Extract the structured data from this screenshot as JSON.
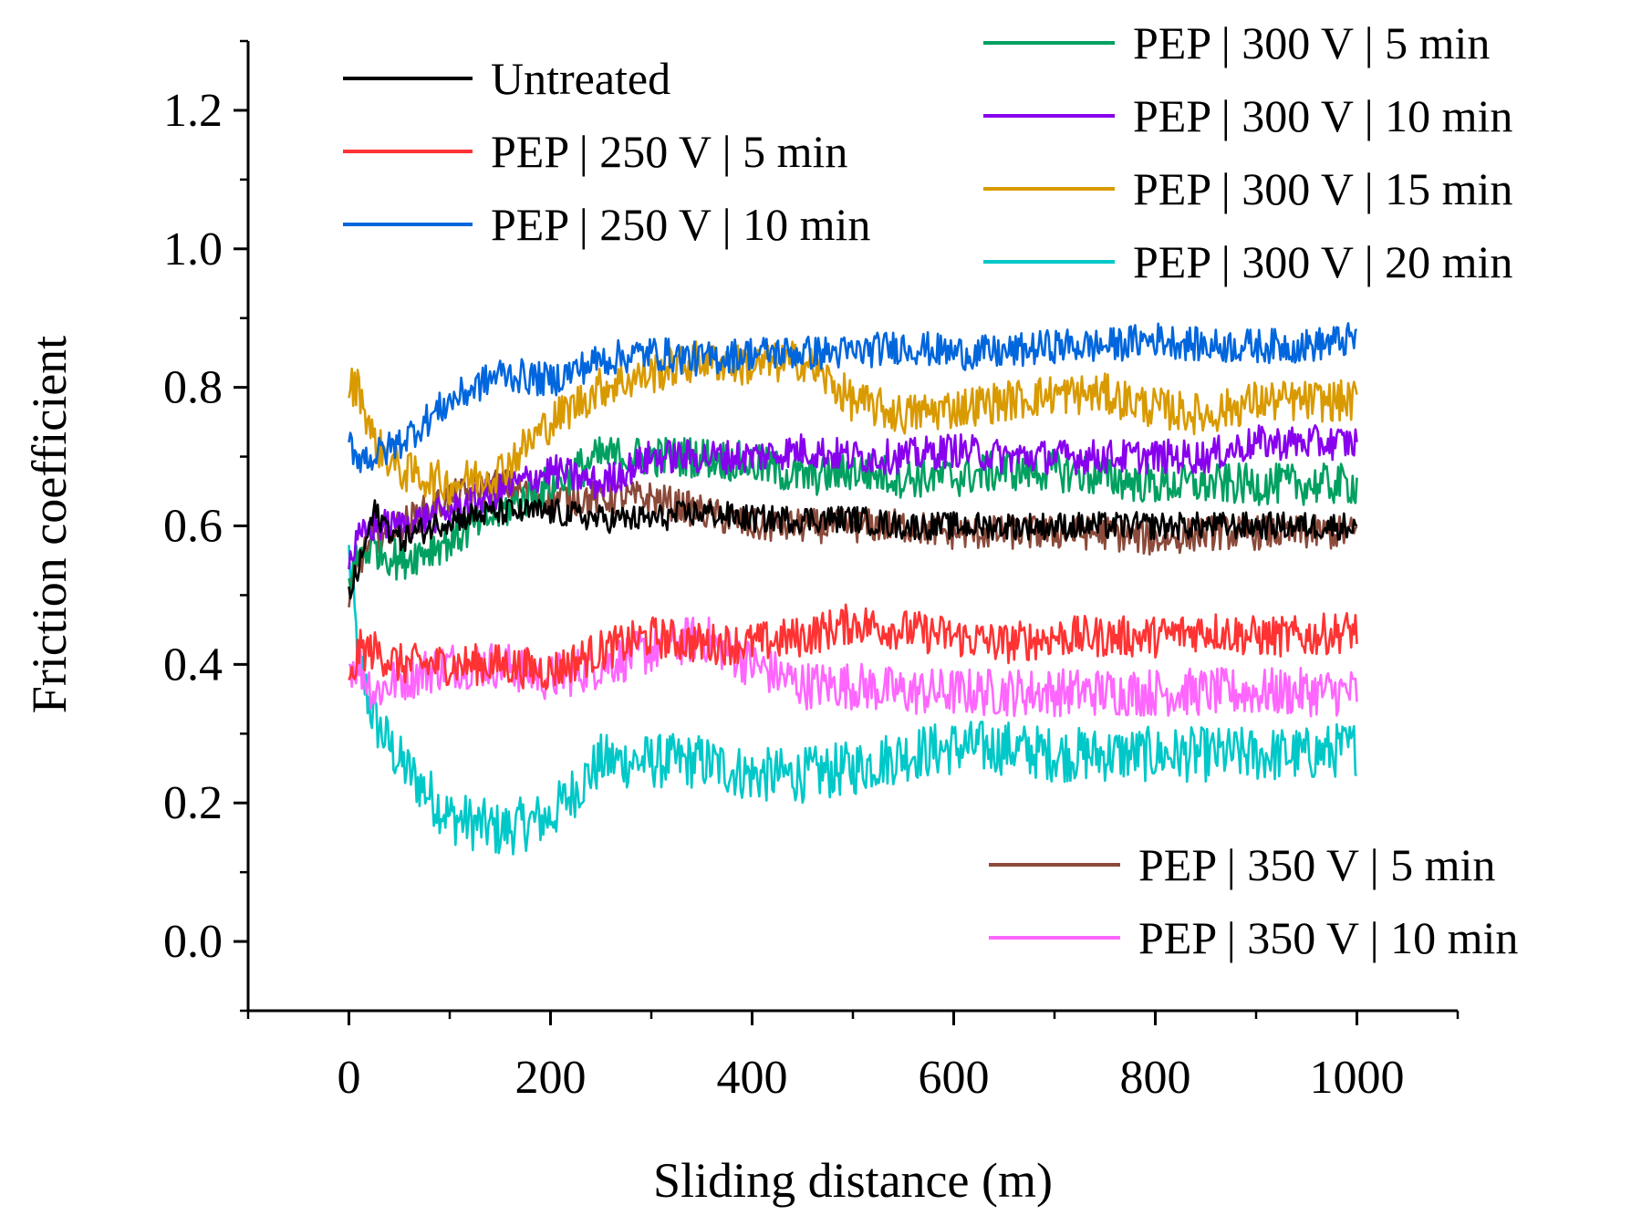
{
  "chart_data": {
    "type": "line",
    "title": "",
    "xlabel": "Sliding distance (m)",
    "ylabel": "Friction coefficient",
    "xlim": [
      -100,
      1100
    ],
    "ylim": [
      -0.1,
      1.3
    ],
    "x_ticks": [
      "0",
      "200",
      "400",
      "600",
      "800",
      "1000"
    ],
    "y_ticks": [
      "0.0",
      "0.2",
      "0.4",
      "0.6",
      "0.8",
      "1.0",
      "1.2"
    ],
    "grid": false,
    "x": [
      0,
      10,
      25,
      50,
      100,
      150,
      200,
      250,
      300,
      350,
      400,
      450,
      500,
      550,
      600,
      650,
      700,
      750,
      800,
      850,
      900,
      950,
      1000
    ],
    "series": [
      {
        "name": "Untreated",
        "color": "#000000",
        "noise": 0.02,
        "values": [
          0.5,
          0.54,
          0.62,
          0.58,
          0.61,
          0.62,
          0.62,
          0.61,
          0.61,
          0.62,
          0.61,
          0.61,
          0.61,
          0.6,
          0.6,
          0.6,
          0.6,
          0.6,
          0.6,
          0.6,
          0.6,
          0.6,
          0.6
        ]
      },
      {
        "name": "PEP | 250 V | 5 min",
        "color": "#ff3333",
        "noise": 0.03,
        "values": [
          0.36,
          0.42,
          0.42,
          0.4,
          0.4,
          0.4,
          0.39,
          0.42,
          0.44,
          0.43,
          0.43,
          0.44,
          0.46,
          0.45,
          0.44,
          0.43,
          0.44,
          0.44,
          0.44,
          0.45,
          0.44,
          0.44,
          0.45
        ]
      },
      {
        "name": "PEP | 250 V | 10 min",
        "color": "#0066dd",
        "noise": 0.025,
        "values": [
          0.72,
          0.7,
          0.7,
          0.72,
          0.78,
          0.82,
          0.81,
          0.84,
          0.85,
          0.84,
          0.85,
          0.85,
          0.85,
          0.86,
          0.85,
          0.85,
          0.86,
          0.86,
          0.87,
          0.86,
          0.86,
          0.86,
          0.87
        ]
      },
      {
        "name": "PEP | 300 V | 5 min",
        "color": "#00a060",
        "noise": 0.03,
        "values": [
          0.52,
          0.56,
          0.57,
          0.55,
          0.58,
          0.62,
          0.66,
          0.7,
          0.7,
          0.7,
          0.69,
          0.67,
          0.68,
          0.67,
          0.67,
          0.68,
          0.68,
          0.67,
          0.66,
          0.66,
          0.66,
          0.66,
          0.66
        ]
      },
      {
        "name": "PEP | 300 V | 10 min",
        "color": "#8800ee",
        "noise": 0.025,
        "values": [
          0.55,
          0.58,
          0.6,
          0.6,
          0.62,
          0.65,
          0.68,
          0.66,
          0.7,
          0.7,
          0.7,
          0.71,
          0.7,
          0.7,
          0.71,
          0.7,
          0.7,
          0.7,
          0.7,
          0.7,
          0.72,
          0.72,
          0.72
        ]
      },
      {
        "name": "PEP | 300 V | 15 min",
        "color": "#d99a00",
        "noise": 0.03,
        "values": [
          0.8,
          0.8,
          0.72,
          0.68,
          0.66,
          0.68,
          0.75,
          0.8,
          0.82,
          0.84,
          0.83,
          0.84,
          0.78,
          0.76,
          0.77,
          0.78,
          0.79,
          0.79,
          0.77,
          0.76,
          0.78,
          0.78,
          0.78
        ]
      },
      {
        "name": "PEP | 300 V | 20 min",
        "color": "#00c8c8",
        "noise": 0.04,
        "values": [
          0.56,
          0.4,
          0.32,
          0.26,
          0.18,
          0.16,
          0.18,
          0.26,
          0.26,
          0.26,
          0.24,
          0.24,
          0.25,
          0.27,
          0.28,
          0.28,
          0.27,
          0.27,
          0.27,
          0.27,
          0.27,
          0.27,
          0.28
        ]
      },
      {
        "name": "PEP | 350 V | 5 min",
        "color": "#8b4a3a",
        "noise": 0.025,
        "values": [
          0.48,
          0.55,
          0.58,
          0.6,
          0.64,
          0.66,
          0.64,
          0.64,
          0.64,
          0.62,
          0.6,
          0.6,
          0.6,
          0.6,
          0.59,
          0.59,
          0.59,
          0.59,
          0.58,
          0.59,
          0.59,
          0.59,
          0.59
        ]
      },
      {
        "name": "PEP | 350 V | 10 min",
        "color": "#ff66ff",
        "noise": 0.035,
        "values": [
          0.4,
          0.4,
          0.36,
          0.38,
          0.4,
          0.4,
          0.38,
          0.4,
          0.42,
          0.44,
          0.4,
          0.37,
          0.37,
          0.36,
          0.36,
          0.36,
          0.36,
          0.36,
          0.36,
          0.36,
          0.36,
          0.36,
          0.36
        ]
      }
    ]
  }
}
